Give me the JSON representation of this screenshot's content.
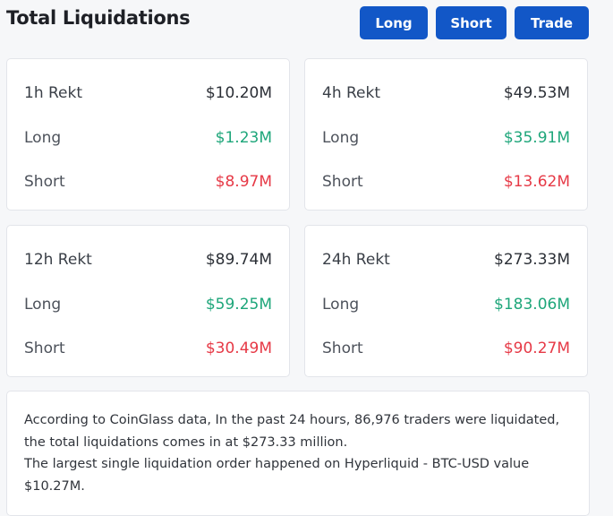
{
  "header": {
    "title": "Total Liquidations",
    "buttons": [
      "Long",
      "Short",
      "Trade"
    ]
  },
  "cards": [
    {
      "label": "1h Rekt",
      "total": "$10.20M",
      "rows": [
        {
          "label": "Long",
          "value": "$1.23M"
        },
        {
          "label": "Short",
          "value": "$8.97M"
        }
      ]
    },
    {
      "label": "4h Rekt",
      "total": "$49.53M",
      "rows": [
        {
          "label": "Long",
          "value": "$35.91M"
        },
        {
          "label": "Short",
          "value": "$13.62M"
        }
      ]
    },
    {
      "label": "12h Rekt",
      "total": "$89.74M",
      "rows": [
        {
          "label": "Long",
          "value": "$59.25M"
        },
        {
          "label": "Short",
          "value": "$30.49M"
        }
      ]
    },
    {
      "label": "24h Rekt",
      "total": "$273.33M",
      "rows": [
        {
          "label": "Long",
          "value": "$183.06M"
        },
        {
          "label": "Short",
          "value": "$90.27M"
        }
      ]
    }
  ],
  "summary": {
    "paragraphs": [
      "According to CoinGlass data, In the past 24 hours, 86,976 traders were liquidated, the total liquidations comes in at $273.33 million.",
      "The largest single liquidation order happened on Hyperliquid - BTC-USD value $10.27M."
    ]
  }
}
